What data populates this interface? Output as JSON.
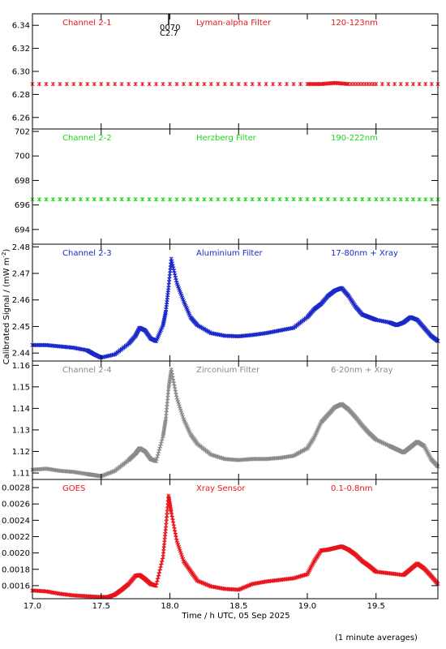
{
  "chart_data": [
    {
      "type": "scatter",
      "channel": "Channel 2-1",
      "filter": "Lyman-alpha Filter",
      "band": "120-123nm",
      "color": "#e8141b",
      "ylim": [
        6.25,
        6.35
      ],
      "yticks": [
        "6.26",
        "6.28",
        "6.30",
        "6.32",
        "6.34"
      ],
      "annotations": [
        "0070",
        "C2.7"
      ],
      "series": [
        {
          "x": [
            17.0,
            17.5,
            18.0,
            18.5,
            19.0,
            19.1,
            19.2,
            19.3,
            19.5,
            19.95
          ],
          "y": [
            6.289,
            6.289,
            6.289,
            6.289,
            6.289,
            6.289,
            6.29,
            6.289,
            6.289,
            6.289
          ]
        }
      ]
    },
    {
      "type": "scatter",
      "channel": "Channel 2-2",
      "filter": "Herzberg Filter",
      "band": "190-222nm",
      "color": "#1ad81a",
      "ylim": [
        692.8,
        702.2
      ],
      "yticks": [
        "694",
        "696",
        "698",
        "700",
        "702"
      ],
      "series": [
        {
          "x": [
            17.0,
            17.5,
            18.0,
            18.5,
            19.0,
            19.5,
            19.95
          ],
          "y": [
            696.45,
            696.47,
            696.45,
            696.46,
            696.47,
            696.46,
            696.45
          ]
        }
      ]
    },
    {
      "type": "scatter",
      "channel": "Channel 2-3",
      "filter": "Aluminium Filter",
      "band": "17-80nm + Xray",
      "color": "#1a28c8",
      "ylim": [
        2.437,
        2.481
      ],
      "yticks": [
        "2.44",
        "2.45",
        "2.46",
        "2.47",
        "2.48"
      ],
      "series": [
        {
          "x": [
            17.0,
            17.1,
            17.2,
            17.3,
            17.4,
            17.45,
            17.5,
            17.6,
            17.7,
            17.75,
            17.78,
            17.82,
            17.86,
            17.9,
            17.95,
            17.97,
            17.99,
            18.01,
            18.05,
            18.1,
            18.15,
            18.2,
            18.3,
            18.4,
            18.5,
            18.6,
            18.7,
            18.8,
            18.9,
            19.0,
            19.05,
            19.1,
            19.15,
            19.2,
            19.25,
            19.3,
            19.35,
            19.4,
            19.45,
            19.5,
            19.6,
            19.65,
            19.7,
            19.75,
            19.8,
            19.85,
            19.9,
            19.95
          ],
          "y": [
            2.443,
            2.443,
            2.4425,
            2.442,
            2.441,
            2.4395,
            2.4383,
            2.4395,
            2.4435,
            2.4465,
            2.4495,
            2.4485,
            2.4455,
            2.4445,
            2.4505,
            2.4555,
            2.4645,
            2.4755,
            2.4665,
            2.4595,
            2.4535,
            2.4505,
            2.4475,
            2.4465,
            2.4463,
            2.4468,
            2.4475,
            2.4485,
            2.4495,
            2.4535,
            2.4565,
            2.4585,
            2.4615,
            2.4635,
            2.4645,
            2.4615,
            2.4575,
            2.4545,
            2.4535,
            2.4525,
            2.4515,
            2.4505,
            2.4515,
            2.4535,
            2.4525,
            2.4495,
            2.4465,
            2.4445
          ]
        }
      ]
    },
    {
      "type": "scatter",
      "channel": "Channel 2-4",
      "filter": "Zirconium Filter",
      "band": "6-20nm + Xray",
      "color": "#8a8a8a",
      "ylim": [
        1.107,
        1.162
      ],
      "yticks": [
        "1.11",
        "1.12",
        "1.13",
        "1.14",
        "1.15",
        "1.16"
      ],
      "series": [
        {
          "x": [
            17.0,
            17.1,
            17.2,
            17.3,
            17.4,
            17.45,
            17.5,
            17.6,
            17.7,
            17.75,
            17.78,
            17.82,
            17.86,
            17.9,
            17.95,
            17.97,
            17.99,
            18.01,
            18.05,
            18.1,
            18.15,
            18.2,
            18.3,
            18.4,
            18.5,
            18.6,
            18.7,
            18.8,
            18.9,
            19.0,
            19.05,
            19.1,
            19.15,
            19.2,
            19.25,
            19.3,
            19.35,
            19.4,
            19.45,
            19.5,
            19.6,
            19.65,
            19.7,
            19.75,
            19.8,
            19.85,
            19.9,
            19.95
          ],
          "y": [
            1.1115,
            1.112,
            1.111,
            1.1105,
            1.1095,
            1.109,
            1.1085,
            1.111,
            1.116,
            1.119,
            1.1215,
            1.12,
            1.1165,
            1.1155,
            1.127,
            1.135,
            1.149,
            1.158,
            1.145,
            1.135,
            1.128,
            1.1235,
            1.1185,
            1.1165,
            1.116,
            1.1165,
            1.1165,
            1.117,
            1.118,
            1.1215,
            1.1265,
            1.1335,
            1.137,
            1.1405,
            1.142,
            1.1395,
            1.136,
            1.132,
            1.1285,
            1.1255,
            1.1225,
            1.121,
            1.1195,
            1.122,
            1.1245,
            1.1225,
            1.1165,
            1.113
          ]
        }
      ]
    },
    {
      "type": "scatter",
      "channel": "GOES",
      "filter": "Xray Sensor",
      "band": "0.1-0.8nm",
      "color": "#e8141b",
      "ylim": [
        0.00144,
        0.0029
      ],
      "yticks": [
        "0.0016",
        "0.0018",
        "0.0020",
        "0.0022",
        "0.0024",
        "0.0026",
        "0.0028"
      ],
      "series": [
        {
          "x": [
            17.0,
            17.1,
            17.2,
            17.3,
            17.4,
            17.5,
            17.55,
            17.6,
            17.65,
            17.7,
            17.75,
            17.78,
            17.82,
            17.86,
            17.9,
            17.95,
            17.97,
            17.99,
            18.01,
            18.05,
            18.1,
            18.15,
            18.2,
            18.3,
            18.4,
            18.5,
            18.6,
            18.7,
            18.8,
            18.9,
            19.0,
            19.05,
            19.1,
            19.15,
            19.2,
            19.25,
            19.3,
            19.35,
            19.4,
            19.45,
            19.5,
            19.6,
            19.7,
            19.75,
            19.8,
            19.85,
            19.9,
            19.95
          ],
          "y": [
            0.00154,
            0.00153,
            0.0015,
            0.00148,
            0.00147,
            0.00146,
            0.00146,
            0.00149,
            0.00155,
            0.00162,
            0.00172,
            0.00173,
            0.00168,
            0.00162,
            0.0016,
            0.00195,
            0.0023,
            0.0027,
            0.0025,
            0.00215,
            0.0019,
            0.00178,
            0.00166,
            0.00159,
            0.00156,
            0.00155,
            0.00162,
            0.00165,
            0.00167,
            0.00169,
            0.00174,
            0.0019,
            0.00203,
            0.00204,
            0.00206,
            0.00208,
            0.00204,
            0.00198,
            0.0019,
            0.00184,
            0.00177,
            0.00175,
            0.00173,
            0.0018,
            0.00187,
            0.00181,
            0.00172,
            0.00162
          ]
        }
      ]
    }
  ],
  "xaxis": {
    "xlim": [
      17.0,
      19.95
    ],
    "ticks": [
      17.0,
      17.5,
      18.0,
      18.5,
      19.0,
      19.5
    ],
    "tick_labels": [
      "17.0",
      "17.5",
      "18.0",
      "18.5",
      "19.0",
      "19.5"
    ],
    "label": "Time / h UTC, 05 Sep 2025"
  },
  "ylabel": "Calibrated Signal / (mW m",
  "ylabel_sup": "-2",
  "ylabel_close": ")",
  "footnote": "(1 minute averages)"
}
